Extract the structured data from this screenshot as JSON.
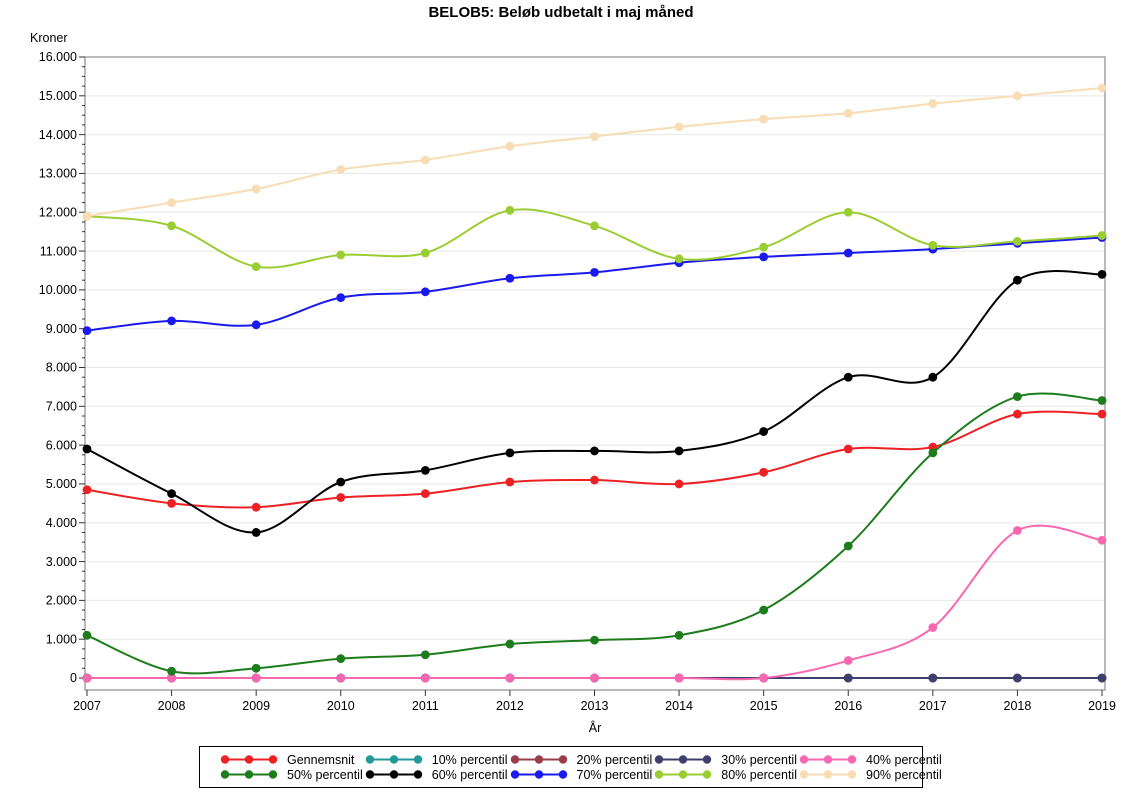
{
  "title": "BELOB5: Beløb udbetalt i maj måned",
  "chart_data": {
    "type": "line",
    "x": [
      2007,
      2008,
      2009,
      2010,
      2011,
      2012,
      2013,
      2014,
      2015,
      2016,
      2017,
      2018,
      2019
    ],
    "x_tick_labels": [
      "2007",
      "2008",
      "2009",
      "2010",
      "2011",
      "2012",
      "2013",
      "2014",
      "2015",
      "2016",
      "2017",
      "2018",
      "2019"
    ],
    "xlabel": "År",
    "ylabel": "Kroner",
    "ylim": [
      0,
      16000
    ],
    "y_tick_labels": [
      "0",
      "1.000",
      "2.000",
      "3.000",
      "4.000",
      "5.000",
      "6.000",
      "7.000",
      "8.000",
      "9.000",
      "10.000",
      "11.000",
      "12.000",
      "13.000",
      "14.000",
      "15.000",
      "16.000"
    ],
    "grid": true,
    "legend_position": "bottom",
    "marker": "circle",
    "smooth": true,
    "series": [
      {
        "name": "Gennemsnit",
        "color": "#ed2024",
        "values": [
          4850,
          4500,
          4400,
          4650,
          4750,
          5050,
          5100,
          5000,
          5300,
          5900,
          5950,
          6800,
          6800
        ]
      },
      {
        "name": "10% percentil",
        "color": "#229999",
        "values": [
          0,
          0,
          0,
          0,
          0,
          0,
          0,
          0,
          0,
          0,
          0,
          0,
          0
        ]
      },
      {
        "name": "20% percentil",
        "color": "#993d4d",
        "values": [
          0,
          0,
          0,
          0,
          0,
          0,
          0,
          0,
          0,
          0,
          0,
          0,
          0
        ]
      },
      {
        "name": "30% percentil",
        "color": "#3f3f6e",
        "values": [
          0,
          0,
          0,
          0,
          0,
          0,
          0,
          0,
          0,
          0,
          0,
          0,
          0
        ]
      },
      {
        "name": "40% percentil",
        "color": "#f768b1",
        "values": [
          0,
          0,
          0,
          0,
          0,
          0,
          0,
          0,
          0,
          450,
          1300,
          3800,
          3550
        ]
      },
      {
        "name": "50% percentil",
        "color": "#1d7d1d",
        "values": [
          1100,
          175,
          250,
          500,
          600,
          875,
          975,
          1100,
          1750,
          3400,
          5800,
          7250,
          7150
        ]
      },
      {
        "name": "60% percentil",
        "color": "#000000",
        "values": [
          5900,
          4750,
          3750,
          5050,
          5350,
          5800,
          5850,
          5850,
          6350,
          7750,
          7750,
          10250,
          10400
        ]
      },
      {
        "name": "70% percentil",
        "color": "#1a1aee",
        "values": [
          8950,
          9200,
          9100,
          9800,
          9950,
          10300,
          10450,
          10700,
          10850,
          10950,
          11050,
          11200,
          11350
        ]
      },
      {
        "name": "80% percentil",
        "color": "#9acd32",
        "values": [
          11900,
          11650,
          10600,
          10900,
          10950,
          12050,
          11650,
          10800,
          11100,
          12000,
          11150,
          11250,
          11400
        ]
      },
      {
        "name": "90% percentil",
        "color": "#f8dcb4",
        "values": [
          11900,
          12250,
          12600,
          13100,
          13350,
          13700,
          13950,
          14200,
          14400,
          14550,
          14800,
          15000,
          15200
        ]
      }
    ]
  }
}
